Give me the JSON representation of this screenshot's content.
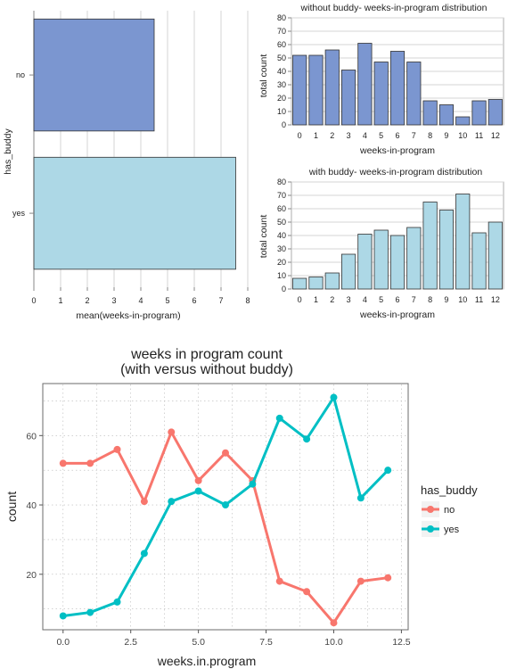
{
  "chart_data": [
    {
      "type": "bar",
      "orientation": "horizontal",
      "title": "",
      "xlabel": "mean(weeks-in-program)",
      "ylabel": "has_buddy",
      "categories": [
        "no",
        "yes"
      ],
      "values": [
        4.5,
        7.55
      ],
      "xlim": [
        0,
        8
      ],
      "xticks": [
        "0",
        "1",
        "2",
        "3",
        "4",
        "5",
        "6",
        "7",
        "8"
      ],
      "colors": [
        "#7b96d0",
        "#add8e6"
      ],
      "grid": true
    },
    {
      "type": "bar",
      "title": "without buddy- weeks-in-program distribution",
      "xlabel": "weeks-in-program",
      "ylabel": "total count",
      "categories": [
        "0",
        "1",
        "2",
        "3",
        "4",
        "5",
        "6",
        "7",
        "8",
        "9",
        "10",
        "11",
        "12"
      ],
      "values": [
        52,
        52,
        56,
        41,
        61,
        47,
        55,
        47,
        18,
        15,
        6,
        18,
        19
      ],
      "ylim": [
        0,
        80
      ],
      "yticks": [
        "0",
        "10",
        "20",
        "30",
        "40",
        "50",
        "60",
        "70",
        "80"
      ],
      "color": "#7b96d0",
      "grid": true
    },
    {
      "type": "bar",
      "title": "with buddy- weeks-in-program distribution",
      "xlabel": "weeks-in-program",
      "ylabel": "total count",
      "categories": [
        "0",
        "1",
        "2",
        "3",
        "4",
        "5",
        "6",
        "7",
        "8",
        "9",
        "10",
        "11",
        "12"
      ],
      "values": [
        8,
        9,
        12,
        26,
        41,
        44,
        40,
        46,
        65,
        59,
        71,
        42,
        50
      ],
      "ylim": [
        0,
        80
      ],
      "yticks": [
        "0",
        "10",
        "20",
        "30",
        "40",
        "50",
        "60",
        "70",
        "80"
      ],
      "color": "#add8e6",
      "grid": true
    },
    {
      "type": "line",
      "title": "weeks in program count",
      "subtitle": "(with versus without buddy)",
      "xlabel": "weeks.in.program",
      "ylabel": "count",
      "x": [
        0,
        1,
        2,
        3,
        4,
        5,
        6,
        7,
        8,
        9,
        10,
        11,
        12
      ],
      "series": [
        {
          "name": "no",
          "color": "#f8766d",
          "values": [
            52,
            52,
            56,
            41,
            61,
            47,
            55,
            47,
            18,
            15,
            6,
            18,
            19
          ]
        },
        {
          "name": "yes",
          "color": "#00bfc4",
          "values": [
            8,
            9,
            12,
            26,
            41,
            44,
            40,
            46,
            65,
            59,
            71,
            42,
            50
          ]
        }
      ],
      "xlim": [
        -0.75,
        12.75
      ],
      "ylim": [
        4,
        75
      ],
      "xticks": [
        "0.0",
        "2.5",
        "5.0",
        "7.5",
        "10.0",
        "12.5"
      ],
      "yticks": [
        "20",
        "40",
        "60"
      ],
      "legend_title": "has_buddy",
      "legend_position": "right",
      "grid": true
    }
  ]
}
